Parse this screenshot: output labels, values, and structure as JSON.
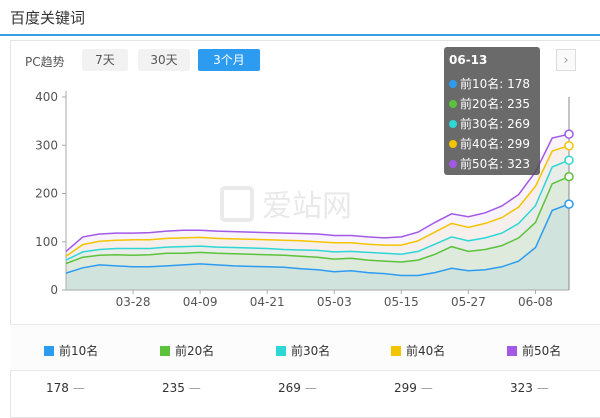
{
  "page": {
    "title": "百度关键词"
  },
  "controls": {
    "trend_label": "PC趋势",
    "ranges": [
      {
        "label": "7天",
        "active": false
      },
      {
        "label": "30天",
        "active": false
      },
      {
        "label": "3个月",
        "active": true
      }
    ],
    "next_icon": "chevron-right-icon"
  },
  "watermark": {
    "text": "爱站网"
  },
  "tooltip": {
    "date": "06-13",
    "rows": [
      {
        "label": "前10名: 178",
        "color": "#2d9cf0"
      },
      {
        "label": "前20名: 235",
        "color": "#5cc23c"
      },
      {
        "label": "前30名: 269",
        "color": "#2fd6d6"
      },
      {
        "label": "前40名: 299",
        "color": "#f3c400"
      },
      {
        "label": "前50名: 323",
        "color": "#a259e6"
      }
    ]
  },
  "legend": [
    {
      "label": "前10名",
      "color": "#2d9cf0",
      "value": "178",
      "dash": "—"
    },
    {
      "label": "前20名",
      "color": "#5cc23c",
      "value": "235",
      "dash": "—"
    },
    {
      "label": "前30名",
      "color": "#2fd6d6",
      "value": "269",
      "dash": "—"
    },
    {
      "label": "前40名",
      "color": "#f3c400",
      "value": "299",
      "dash": "—"
    },
    {
      "label": "前50名",
      "color": "#a259e6",
      "value": "323",
      "dash": "—"
    }
  ],
  "chart_data": {
    "type": "line",
    "title": "",
    "xlabel": "",
    "ylabel": "",
    "ylim": [
      0,
      400
    ],
    "yticks": [
      0,
      100,
      200,
      300,
      400
    ],
    "xtick_labels": [
      "03-28",
      "04-09",
      "04-21",
      "05-03",
      "05-15",
      "05-27",
      "06-08"
    ],
    "grid": false,
    "area_fill": true,
    "categories": [
      "03-16",
      "03-19",
      "03-22",
      "03-25",
      "03-28",
      "03-31",
      "04-03",
      "04-06",
      "04-09",
      "04-12",
      "04-15",
      "04-18",
      "04-21",
      "04-24",
      "04-27",
      "04-30",
      "05-03",
      "05-06",
      "05-09",
      "05-12",
      "05-15",
      "05-18",
      "05-21",
      "05-24",
      "05-27",
      "05-30",
      "06-02",
      "06-05",
      "06-08",
      "06-11",
      "06-13"
    ],
    "series": [
      {
        "name": "前10名",
        "color": "#2d9cf0",
        "values": [
          35,
          46,
          52,
          50,
          48,
          48,
          50,
          52,
          54,
          52,
          50,
          49,
          48,
          47,
          44,
          42,
          38,
          40,
          36,
          34,
          30,
          30,
          36,
          45,
          40,
          42,
          48,
          60,
          88,
          165,
          178
        ]
      },
      {
        "name": "前20名",
        "color": "#5cc23c",
        "values": [
          55,
          68,
          72,
          73,
          72,
          73,
          76,
          76,
          78,
          76,
          75,
          74,
          73,
          72,
          70,
          68,
          64,
          66,
          62,
          60,
          58,
          62,
          74,
          90,
          80,
          84,
          92,
          108,
          140,
          220,
          235
        ]
      },
      {
        "name": "前30名",
        "color": "#2fd6d6",
        "values": [
          62,
          79,
          84,
          86,
          86,
          86,
          89,
          90,
          91,
          89,
          88,
          87,
          86,
          84,
          83,
          82,
          79,
          80,
          78,
          76,
          74,
          80,
          95,
          110,
          102,
          108,
          118,
          138,
          175,
          255,
          269
        ]
      },
      {
        "name": "前40名",
        "color": "#f3c400",
        "values": [
          70,
          94,
          101,
          103,
          104,
          104,
          107,
          108,
          109,
          107,
          106,
          105,
          104,
          103,
          102,
          100,
          98,
          98,
          95,
          93,
          93,
          102,
          120,
          138,
          130,
          138,
          150,
          172,
          215,
          288,
          299
        ]
      },
      {
        "name": "前50名",
        "color": "#a259e6",
        "values": [
          80,
          110,
          116,
          118,
          118,
          119,
          122,
          124,
          124,
          122,
          121,
          120,
          119,
          118,
          117,
          116,
          113,
          113,
          110,
          108,
          110,
          120,
          140,
          158,
          152,
          160,
          174,
          198,
          245,
          315,
          323
        ]
      }
    ]
  }
}
